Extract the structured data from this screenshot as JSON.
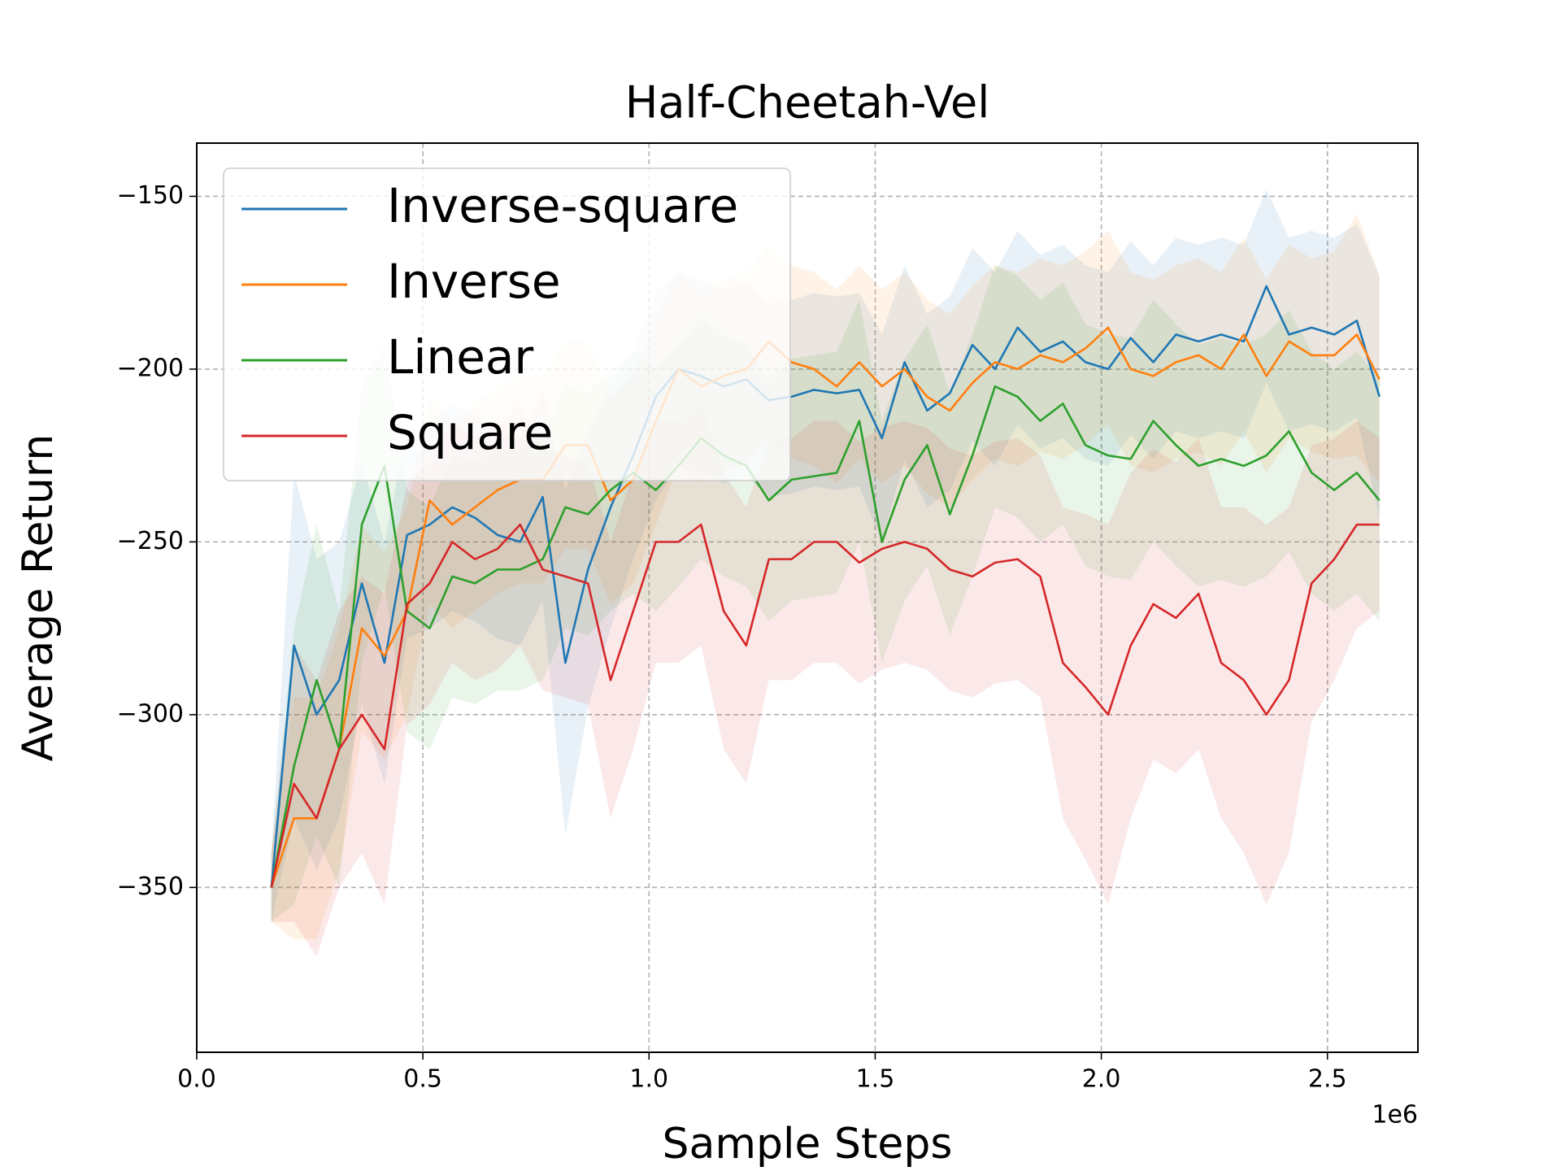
{
  "chart_data": {
    "type": "line",
    "title": "Half-Cheetah-Vel",
    "xlabel": "Sample Steps",
    "ylabel": "Average Return",
    "x_offset_label": "1e6",
    "x": [
      0.165,
      0.215,
      0.265,
      0.315,
      0.365,
      0.415,
      0.465,
      0.515,
      0.565,
      0.615,
      0.665,
      0.715,
      0.765,
      0.815,
      0.865,
      0.915,
      0.965,
      1.015,
      1.065,
      1.115,
      1.165,
      1.215,
      1.265,
      1.315,
      1.365,
      1.415,
      1.465,
      1.515,
      1.565,
      1.615,
      1.665,
      1.715,
      1.765,
      1.815,
      1.865,
      1.915,
      1.965,
      2.015,
      2.065,
      2.115,
      2.165,
      2.215,
      2.265,
      2.315,
      2.365,
      2.415,
      2.465,
      2.515,
      2.565,
      2.615
    ],
    "series": [
      {
        "name": "Inverse-square",
        "color": "#1f77b4",
        "values": [
          -350,
          -280,
          -300,
          -290,
          -262,
          -285,
          -248,
          -245,
          -240,
          -243,
          -248,
          -250,
          -237,
          -285,
          -258,
          -240,
          -225,
          -208,
          -200,
          -202,
          -205,
          -203,
          -209,
          -208,
          -206,
          -207,
          -206,
          -220,
          -198,
          -212,
          -207,
          -193,
          -200,
          -188,
          -195,
          -192,
          -198,
          -200,
          -191,
          -198,
          -190,
          -192,
          -190,
          -192,
          -176,
          -190,
          -188,
          -190,
          -186,
          -208
        ],
        "error": [
          10,
          50,
          45,
          40,
          35,
          35,
          30,
          30,
          30,
          30,
          30,
          30,
          30,
          50,
          40,
          35,
          30,
          30,
          28,
          28,
          28,
          28,
          28,
          28,
          28,
          28,
          28,
          30,
          28,
          28,
          28,
          28,
          28,
          28,
          28,
          28,
          28,
          28,
          28,
          28,
          28,
          28,
          28,
          28,
          28,
          28,
          28,
          28,
          28,
          35
        ]
      },
      {
        "name": "Inverse",
        "color": "#ff7f0e",
        "values": [
          -350,
          -330,
          -330,
          -310,
          -275,
          -283,
          -270,
          -238,
          -245,
          -240,
          -235,
          -232,
          -232,
          -222,
          -222,
          -238,
          -232,
          -215,
          -200,
          -205,
          -202,
          -200,
          -192,
          -198,
          -200,
          -205,
          -198,
          -205,
          -200,
          -208,
          -212,
          -204,
          -198,
          -200,
          -196,
          -198,
          -194,
          -188,
          -200,
          -202,
          -198,
          -196,
          -200,
          -190,
          -202,
          -192,
          -196,
          -196,
          -190,
          -203
        ],
        "error": [
          10,
          35,
          35,
          35,
          30,
          30,
          30,
          30,
          30,
          30,
          30,
          30,
          30,
          30,
          30,
          30,
          30,
          30,
          28,
          28,
          28,
          28,
          28,
          28,
          28,
          28,
          28,
          28,
          28,
          28,
          28,
          28,
          28,
          28,
          28,
          28,
          28,
          28,
          28,
          28,
          28,
          28,
          28,
          28,
          28,
          28,
          28,
          30,
          35,
          30
        ]
      },
      {
        "name": "Linear",
        "color": "#2ca02c",
        "values": [
          -350,
          -315,
          -290,
          -310,
          -245,
          -228,
          -270,
          -275,
          -260,
          -262,
          -258,
          -258,
          -255,
          -240,
          -242,
          -235,
          -230,
          -235,
          -228,
          -220,
          -225,
          -228,
          -238,
          -232,
          -231,
          -230,
          -215,
          -250,
          -232,
          -222,
          -242,
          -225,
          -205,
          -208,
          -215,
          -210,
          -222,
          -225,
          -226,
          -215,
          -222,
          -228,
          -226,
          -228,
          -225,
          -218,
          -230,
          -235,
          -230,
          -238
        ],
        "error": [
          10,
          40,
          45,
          40,
          40,
          35,
          35,
          35,
          35,
          35,
          35,
          35,
          35,
          35,
          35,
          35,
          35,
          35,
          35,
          35,
          35,
          35,
          35,
          35,
          35,
          35,
          35,
          35,
          35,
          35,
          35,
          35,
          35,
          35,
          35,
          35,
          35,
          35,
          35,
          35,
          35,
          35,
          35,
          35,
          35,
          35,
          35,
          35,
          35,
          35
        ]
      },
      {
        "name": "Square",
        "color": "#d62728",
        "values": [
          -350,
          -320,
          -330,
          -310,
          -300,
          -310,
          -268,
          -262,
          -250,
          -255,
          -252,
          -245,
          -258,
          -260,
          -262,
          -290,
          -270,
          -250,
          -250,
          -245,
          -270,
          -280,
          -255,
          -255,
          -250,
          -250,
          -256,
          -252,
          -250,
          -252,
          -258,
          -260,
          -256,
          -255,
          -260,
          -285,
          -292,
          -300,
          -280,
          -268,
          -272,
          -265,
          -285,
          -290,
          -300,
          -290,
          -262,
          -255,
          -245,
          -245
        ],
        "error": [
          10,
          40,
          40,
          40,
          40,
          45,
          35,
          35,
          35,
          35,
          35,
          35,
          35,
          35,
          35,
          40,
          40,
          35,
          35,
          35,
          40,
          40,
          35,
          35,
          35,
          35,
          35,
          35,
          35,
          35,
          35,
          35,
          35,
          35,
          35,
          45,
          50,
          55,
          50,
          45,
          45,
          45,
          45,
          50,
          55,
          50,
          40,
          35,
          30,
          25
        ]
      }
    ],
    "xlim": [
      0,
      2.7
    ],
    "ylim": [
      -397.7,
      -134.6
    ],
    "xticks": [
      {
        "value": 0,
        "label": "0.0"
      },
      {
        "value": 0.5,
        "label": "0.5"
      },
      {
        "value": 1,
        "label": "1.0"
      },
      {
        "value": 1.5,
        "label": "1.5"
      },
      {
        "value": 2,
        "label": "2.0"
      },
      {
        "value": 2.5,
        "label": "2.5"
      }
    ],
    "yticks": [
      {
        "value": -350,
        "label": "−350"
      },
      {
        "value": -300,
        "label": "−300"
      },
      {
        "value": -250,
        "label": "−250"
      },
      {
        "value": -200,
        "label": "−200"
      },
      {
        "value": -150,
        "label": "−150"
      }
    ],
    "grid": true,
    "legend": "upper left"
  }
}
